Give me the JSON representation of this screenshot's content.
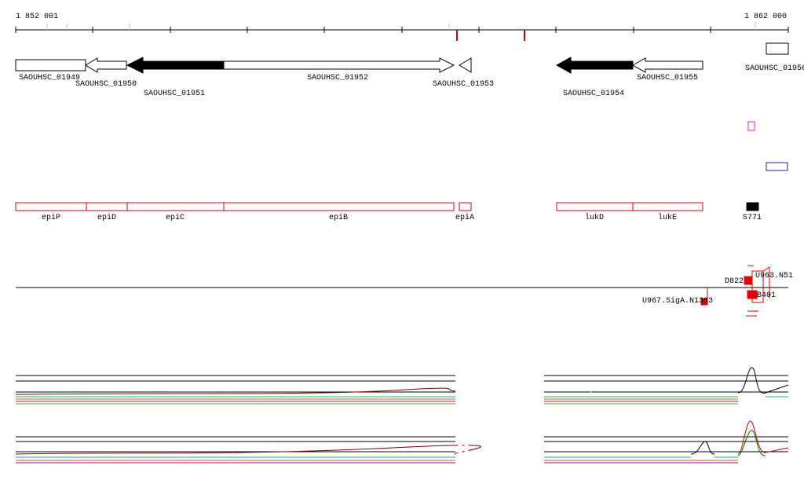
{
  "ruler": {
    "start": "1 852 001",
    "end": "1 862 000"
  },
  "genes": [
    "SAOUHSC_01949",
    "SAOUHSC_01950",
    "SAOUHSC_01951",
    "SAOUHSC_01952",
    "SAOUHSC_01953",
    "SAOUHSC_01954",
    "SAOUHSC_01955",
    "SAOUHSC_01956"
  ],
  "features": [
    "epiP",
    "epiD",
    "epiC",
    "epiB",
    "epiA",
    "lukD",
    "lukE",
    "S771"
  ],
  "sites": [
    "D822",
    "U967.SigA.N1383",
    "U963.N51",
    "B401"
  ]
}
